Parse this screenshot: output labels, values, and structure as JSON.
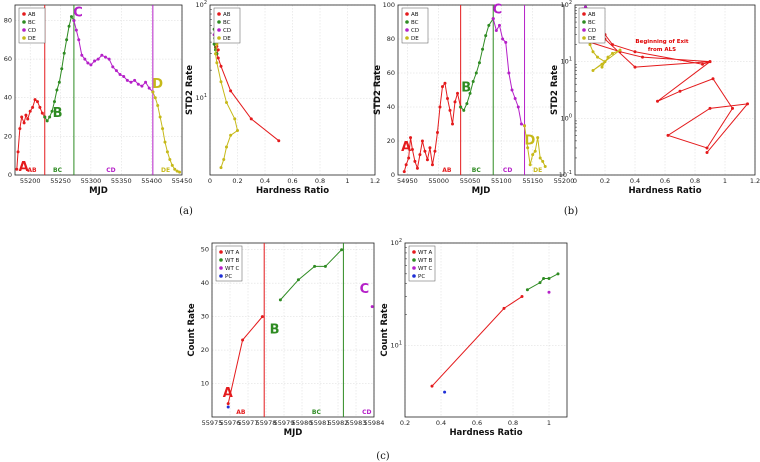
{
  "colors": {
    "AB": "#e41a1c",
    "BC": "#2e8b22",
    "CD": "#b520c8",
    "DE": "#c6b919",
    "PC": "#1f2fd6"
  },
  "captions": [
    "(a)",
    "(b)",
    "(c)"
  ],
  "annotation_exit": [
    "Beginning of Exit",
    "from ALS"
  ],
  "chart_data": [
    {
      "id": "a-left",
      "type": "line",
      "xlabel": "MJD",
      "ylabel": "STD2 Rate",
      "xlim": [
        55175,
        55450
      ],
      "ylim": [
        0,
        88
      ],
      "xticks": [
        55200,
        55250,
        55300,
        55350,
        55400,
        55450
      ],
      "yticks": [
        0,
        20,
        40,
        60,
        80
      ],
      "vlines": [
        {
          "x": 55224,
          "seg": "AB"
        },
        {
          "x": 55272,
          "seg": "BC"
        },
        {
          "x": 55402,
          "seg": "CD"
        }
      ],
      "labels": [
        {
          "t": "A",
          "x": 55181,
          "y": 2,
          "seg": "AB"
        },
        {
          "t": "B",
          "x": 55237,
          "y": 30,
          "seg": "BC"
        },
        {
          "t": "C",
          "x": 55271,
          "y": 82,
          "seg": "CD"
        },
        {
          "t": "D",
          "x": 55401,
          "y": 45,
          "seg": "DE"
        }
      ],
      "seglabels": [
        {
          "t": "AB",
          "x": 55203,
          "seg": "AB"
        },
        {
          "t": "BC",
          "x": 55245,
          "seg": "BC"
        },
        {
          "t": "CD",
          "x": 55333,
          "seg": "CD"
        },
        {
          "t": "DE",
          "x": 55423,
          "seg": "DE"
        }
      ],
      "series": [
        {
          "seg": "AB",
          "x": [
            55178,
            55180,
            55183,
            55186,
            55190,
            55193,
            55196,
            55200,
            55204,
            55208,
            55212,
            55216,
            55220,
            55224
          ],
          "y": [
            3,
            12,
            24,
            30,
            27,
            31,
            29,
            33,
            35,
            39,
            38,
            35,
            32,
            30
          ]
        },
        {
          "seg": "BC",
          "x": [
            55224,
            55228,
            55232,
            55236,
            55240,
            55244,
            55248,
            55252,
            55256,
            55260,
            55264,
            55268,
            55272
          ],
          "y": [
            30,
            28,
            30,
            33,
            38,
            44,
            48,
            55,
            63,
            70,
            77,
            82,
            80
          ]
        },
        {
          "seg": "CD",
          "x": [
            55272,
            55276,
            55280,
            55285,
            55290,
            55295,
            55300,
            55306,
            55312,
            55318,
            55324,
            55330,
            55336,
            55342,
            55348,
            55354,
            55360,
            55366,
            55372,
            55378,
            55384,
            55390,
            55396,
            55402
          ],
          "y": [
            80,
            75,
            70,
            62,
            60,
            58,
            57,
            59,
            60,
            62,
            61,
            60,
            56,
            54,
            52,
            51,
            49,
            48,
            49,
            47,
            46,
            48,
            45,
            43
          ]
        },
        {
          "seg": "DE",
          "x": [
            55402,
            55406,
            55410,
            55414,
            55418,
            55422,
            55426,
            55430,
            55434,
            55438,
            55442,
            55446
          ],
          "y": [
            43,
            40,
            36,
            30,
            24,
            17,
            12,
            8,
            5,
            3,
            2,
            1.5
          ]
        }
      ],
      "legend": [
        "AB",
        "BC",
        "CD",
        "DE"
      ]
    },
    {
      "id": "a-right",
      "type": "line",
      "xlabel": "Hardness Ratio",
      "ylabel": "STD2 Rate",
      "xlim": [
        0.0,
        1.2
      ],
      "ylim": [
        1.5,
        100
      ],
      "ylog": true,
      "xticks": [
        0.0,
        0.2,
        0.4,
        0.6,
        0.8,
        1.0,
        1.2
      ],
      "series": [
        {
          "seg": "AB",
          "x": [
            0.5,
            0.3,
            0.15,
            0.08,
            0.06,
            0.05,
            0.06,
            0.04,
            0.05
          ],
          "y": [
            3.5,
            6,
            12,
            22,
            27,
            30,
            33,
            35,
            36
          ]
        },
        {
          "seg": "BC",
          "x": [
            0.05,
            0.04,
            0.03,
            0.035,
            0.04,
            0.03,
            0.04,
            0.05,
            0.06
          ],
          "y": [
            30,
            33,
            38,
            44,
            48,
            55,
            63,
            70,
            80
          ]
        },
        {
          "seg": "CD",
          "x": [
            0.06,
            0.05,
            0.04,
            0.05,
            0.04,
            0.05,
            0.06,
            0.05,
            0.04,
            0.03,
            0.05,
            0.04
          ],
          "y": [
            80,
            72,
            62,
            58,
            57,
            60,
            58,
            55,
            50,
            48,
            46,
            43
          ]
        },
        {
          "seg": "DE",
          "x": [
            0.04,
            0.05,
            0.04,
            0.05,
            0.08,
            0.12,
            0.18,
            0.2,
            0.15,
            0.12,
            0.1,
            0.08
          ],
          "y": [
            43,
            38,
            30,
            24,
            15,
            9,
            6,
            4.5,
            4,
            3,
            2.2,
            1.8
          ]
        }
      ],
      "legend": [
        "AB",
        "BC",
        "CD",
        "DE"
      ]
    },
    {
      "id": "b-left",
      "type": "line",
      "xlabel": "MJD",
      "ylabel": "STD2 Rate",
      "xlim": [
        54935,
        55200
      ],
      "ylim": [
        0,
        100
      ],
      "xticks": [
        54950,
        55000,
        55050,
        55100,
        55150,
        55200
      ],
      "yticks": [
        0,
        20,
        40,
        60,
        80,
        100
      ],
      "vlines": [
        {
          "x": 55035,
          "seg": "AB"
        },
        {
          "x": 55087,
          "seg": "BC"
        },
        {
          "x": 55137,
          "seg": "CD"
        }
      ],
      "labels": [
        {
          "t": "A",
          "x": 54940,
          "y": 14,
          "seg": "AB"
        },
        {
          "t": "B",
          "x": 55036,
          "y": 49,
          "seg": "BC"
        },
        {
          "t": "C",
          "x": 55086,
          "y": 95,
          "seg": "CD"
        },
        {
          "t": "D",
          "x": 55137,
          "y": 18,
          "seg": "DE"
        }
      ],
      "seglabels": [
        {
          "t": "AB",
          "x": 55013,
          "seg": "AB"
        },
        {
          "t": "BC",
          "x": 55060,
          "seg": "BC"
        },
        {
          "t": "CD",
          "x": 55110,
          "seg": "CD"
        },
        {
          "t": "DE",
          "x": 55158,
          "seg": "DE"
        }
      ],
      "series": [
        {
          "seg": "AB",
          "x": [
            54945,
            54948,
            54952,
            54955,
            54958,
            54962,
            54966,
            54970,
            54974,
            54978,
            54982,
            54986,
            54990,
            54994,
            54998,
            55002,
            55006,
            55010,
            55014,
            55018,
            55022,
            55026,
            55030,
            55035
          ],
          "y": [
            2,
            6,
            10,
            22,
            15,
            8,
            4,
            12,
            20,
            14,
            9,
            16,
            6,
            14,
            25,
            40,
            52,
            54,
            45,
            38,
            30,
            43,
            48,
            40
          ]
        },
        {
          "seg": "BC",
          "x": [
            55035,
            55040,
            55045,
            55050,
            55055,
            55060,
            55065,
            55070,
            55075,
            55080,
            55087
          ],
          "y": [
            40,
            38,
            42,
            48,
            55,
            60,
            66,
            74,
            82,
            88,
            92
          ]
        },
        {
          "seg": "CD",
          "x": [
            55087,
            55092,
            55097,
            55102,
            55107,
            55112,
            55117,
            55122,
            55127,
            55132,
            55137
          ],
          "y": [
            92,
            85,
            88,
            80,
            78,
            60,
            50,
            45,
            40,
            30,
            29
          ]
        },
        {
          "seg": "DE",
          "x": [
            55137,
            55142,
            55146,
            55150,
            55154,
            55158,
            55162,
            55166,
            55170
          ],
          "y": [
            29,
            16,
            6,
            12,
            14,
            22,
            10,
            8,
            5
          ]
        }
      ],
      "legend": [
        "AB",
        "BC",
        "CD",
        "DE"
      ]
    },
    {
      "id": "b-right",
      "type": "line",
      "xlabel": "Hardness Ratio",
      "ylabel": "STD2 Rate",
      "xlim": [
        0.0,
        1.2
      ],
      "ylim": [
        0.1,
        100
      ],
      "ylog": true,
      "xticks": [
        0.0,
        0.2,
        0.4,
        0.6,
        0.8,
        1.0,
        1.2
      ],
      "series": [
        {
          "seg": "AB",
          "x": [
            0.88,
            1.15,
            0.9,
            0.62,
            0.88,
            1.05,
            0.92,
            0.7,
            0.55,
            0.9,
            0.85,
            0.4,
            0.25,
            0.2,
            0.15,
            0.1,
            0.3,
            0.45,
            0.9,
            0.4,
            0.2,
            0.08
          ],
          "y": [
            0.25,
            1.8,
            1.5,
            0.5,
            0.3,
            1.5,
            5,
            3,
            2,
            10,
            9,
            15,
            20,
            30,
            25,
            22,
            15,
            12,
            10,
            8,
            25,
            40
          ]
        },
        {
          "seg": "BC",
          "x": [
            0.06,
            0.05,
            0.07,
            0.06,
            0.05,
            0.06,
            0.08,
            0.07
          ],
          "y": [
            40,
            45,
            55,
            60,
            65,
            75,
            85,
            92
          ]
        },
        {
          "seg": "CD",
          "x": [
            0.07,
            0.05,
            0.06,
            0.08,
            0.06,
            0.05,
            0.04,
            0.05,
            0.06,
            0.07
          ],
          "y": [
            92,
            85,
            80,
            78,
            70,
            60,
            50,
            45,
            40,
            30
          ]
        },
        {
          "seg": "DE",
          "x": [
            0.07,
            0.1,
            0.12,
            0.15,
            0.2,
            0.18,
            0.22,
            0.25,
            0.3,
            0.12,
            0.18
          ],
          "y": [
            30,
            20,
            15,
            12,
            10,
            8,
            12,
            14,
            16,
            7,
            9
          ]
        }
      ],
      "legend": [
        "AB",
        "BC",
        "CD",
        "DE"
      ]
    },
    {
      "id": "c-left",
      "type": "line",
      "xlabel": "MJD",
      "ylabel": "Count Rate",
      "xlim": [
        55975,
        55984
      ],
      "ylim": [
        0,
        52
      ],
      "xticks": [
        55975,
        55976,
        55977,
        55978,
        55979,
        55980,
        55981,
        55982,
        55983,
        55984
      ],
      "yticks": [
        10,
        20,
        30,
        40,
        50
      ],
      "vlines": [
        {
          "x": 55977.9,
          "seg": "AB"
        },
        {
          "x": 55982.3,
          "seg": "BC"
        }
      ],
      "labels": [
        {
          "t": "A",
          "x": 55975.6,
          "y": 6,
          "seg": "AB"
        },
        {
          "t": "B",
          "x": 55978.2,
          "y": 25,
          "seg": "BC"
        },
        {
          "t": "C",
          "x": 55983.2,
          "y": 37,
          "seg": "CD"
        }
      ],
      "seglabels": [
        {
          "t": "AB",
          "x": 55976.6,
          "seg": "AB"
        },
        {
          "t": "BC",
          "x": 55980.8,
          "seg": "BC"
        },
        {
          "t": "CD",
          "x": 55983.6,
          "seg": "CD"
        }
      ],
      "series": [
        {
          "seg": "AB",
          "x": [
            55975.9,
            55976.7,
            55977.8
          ],
          "y": [
            4,
            23,
            30
          ]
        },
        {
          "seg": "BC",
          "x": [
            55978.8,
            55979.8,
            55980.7,
            55981.3,
            55982.2
          ],
          "y": [
            35,
            41,
            45,
            45,
            50
          ]
        },
        {
          "seg": "CD",
          "x": [
            55983.9
          ],
          "y": [
            33
          ]
        },
        {
          "seg": "PC",
          "x": [
            55975.9
          ],
          "y": [
            3
          ]
        }
      ],
      "legend": [
        "WT A",
        "WT B",
        "WT C",
        "PC"
      ]
    },
    {
      "id": "c-right",
      "type": "line",
      "xlabel": "Hardness Ratio",
      "ylabel": "Count Rate",
      "xlim": [
        0.2,
        1.1
      ],
      "ylim": [
        2,
        100
      ],
      "ylog": true,
      "xticks": [
        0.2,
        0.4,
        0.6,
        0.8,
        1.0
      ],
      "series": [
        {
          "seg": "AB",
          "x": [
            0.35,
            0.75,
            0.85
          ],
          "y": [
            4,
            23,
            30
          ]
        },
        {
          "seg": "BC",
          "x": [
            0.88,
            0.95,
            0.97,
            1.0,
            1.05
          ],
          "y": [
            35,
            41,
            45,
            45,
            50
          ]
        },
        {
          "seg": "CD",
          "x": [
            1.0
          ],
          "y": [
            33
          ]
        },
        {
          "seg": "PC",
          "x": [
            0.42
          ],
          "y": [
            3.5
          ]
        }
      ],
      "legend": [
        "WT A",
        "WT B",
        "WT C",
        "PC"
      ]
    }
  ]
}
